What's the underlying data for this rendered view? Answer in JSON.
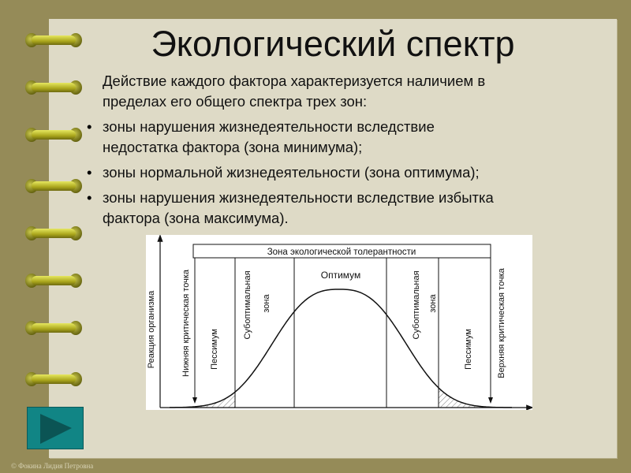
{
  "title": "Экологический спектр",
  "body": {
    "intro": [
      "Действие каждого фактора характеризуется наличием в",
      "пределах его общего спектра трех зон:"
    ],
    "bullets": [
      {
        "marker": "•",
        "lines": [
          "зоны нарушения жизнедеятельности вследствие",
          "недостатка фактора (зона минимума);"
        ]
      },
      {
        "marker": "•",
        "lines": [
          "зоны нормальной жизнедеятельности (зона оптимума);"
        ]
      },
      {
        "marker": "•",
        "lines": [
          "зоны нарушения жизнедеятельности вследствие избытка",
          "фактора (зона максимума)."
        ]
      }
    ]
  },
  "diagram": {
    "header": "Зона экологической толерантности",
    "y_axis": "Реакция организма",
    "lower_point": "Нижняя критическая точка",
    "upper_point": "Верхняя критическая точка",
    "pessimum_left": "Пессимум",
    "pessimum_right": "Пессимум",
    "suboptimal_left": [
      "Субоптимальная",
      "зона"
    ],
    "suboptimal_right": [
      "Субоптимальная",
      "зона"
    ],
    "optimum": "Оптимум"
  },
  "nav": {
    "next_icon": "play-triangle-icon"
  },
  "footer": "© Фокина Лидия Петровна",
  "colors": {
    "background": "#958b58",
    "page": "#dedac6",
    "button": "#118585"
  }
}
